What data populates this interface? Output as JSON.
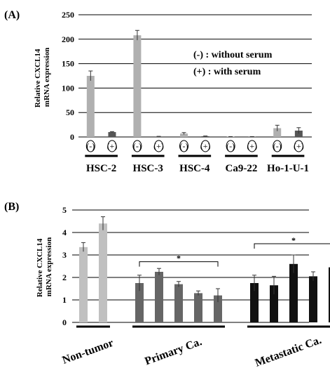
{
  "chart_data": [
    {
      "type": "bar",
      "panel_label": "(A)",
      "ylabel": "Relative CXCL14\nmRNA expression",
      "ylim": [
        0,
        250
      ],
      "yticks": [
        0,
        50,
        100,
        150,
        200,
        250
      ],
      "grid": true,
      "bar_labels": [
        "(-)",
        "(+)",
        "(-)",
        "(+)",
        "(-)",
        "(+)",
        "(-)",
        "(+)",
        "(-)",
        "(+)"
      ],
      "categories": [
        "HSC-2",
        "HSC-3",
        "HSC-4",
        "Ca9-22",
        "Ho-1-U-1"
      ],
      "series": [
        {
          "name": "(-) : without serum",
          "color": "#b0b0b0",
          "values": [
            125,
            208,
            7,
            0.5,
            18
          ],
          "errors": [
            10,
            10,
            2,
            0.3,
            6
          ]
        },
        {
          "name": "(+) : with serum",
          "color": "#555555",
          "values": [
            10,
            1,
            1.5,
            0.5,
            13
          ],
          "errors": [
            1,
            0.3,
            0.5,
            0.3,
            6
          ]
        }
      ],
      "legend": [
        "(-)  : without serum",
        "(+) : with serum"
      ],
      "legend_position": "top-right"
    },
    {
      "type": "bar",
      "panel_label": "(B)",
      "ylabel": "Relative CXCL14\nmRNA expression",
      "ylim": [
        0,
        5
      ],
      "yticks": [
        0,
        1,
        2,
        3,
        4,
        5
      ],
      "grid": true,
      "groups": [
        {
          "name": "Non-tumor",
          "color": "#c0c0c0",
          "values": [
            3.35,
            4.4
          ],
          "errors": [
            0.2,
            0.3
          ]
        },
        {
          "name": "Primary Ca.",
          "color": "#666666",
          "values": [
            1.75,
            2.25,
            1.7,
            1.3,
            1.2
          ],
          "errors": [
            0.35,
            0.15,
            0.12,
            0.1,
            0.3
          ]
        },
        {
          "name": "Metastatic Ca.",
          "color": "#111111",
          "values": [
            1.75,
            1.65,
            2.6,
            2.05,
            2.45
          ],
          "errors": [
            0.35,
            0.4,
            0.4,
            0.2,
            0.5
          ]
        }
      ],
      "significance": [
        "*",
        "*"
      ]
    }
  ]
}
